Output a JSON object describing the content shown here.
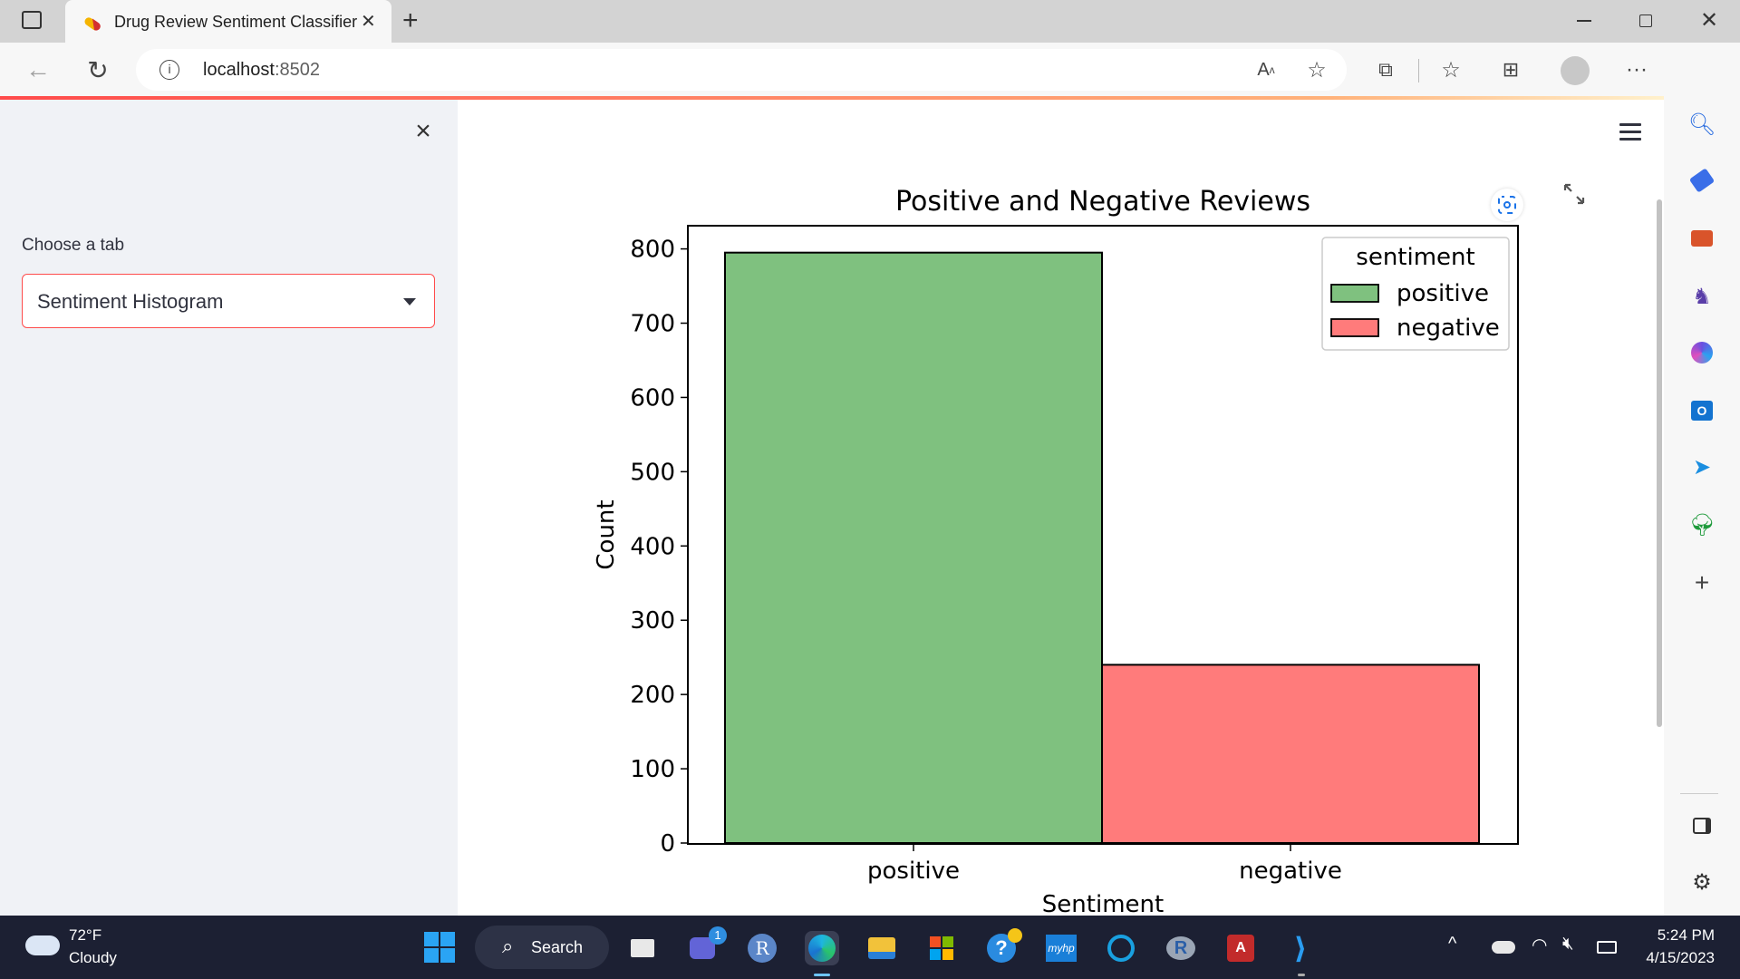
{
  "browser": {
    "tab_title": "Drug Review Sentiment Classifier",
    "url_host": "localhost",
    "url_port": ":8502"
  },
  "sidebar": {
    "select_label": "Choose a tab",
    "selected_tab": "Sentiment Histogram"
  },
  "chart_data": {
    "type": "bar",
    "title": "Positive and Negative Reviews",
    "xlabel": "Sentiment",
    "ylabel": "Count",
    "categories": [
      "positive",
      "negative"
    ],
    "values": [
      795,
      240
    ],
    "ylim": [
      0,
      830
    ],
    "yticks": [
      0,
      100,
      200,
      300,
      400,
      500,
      600,
      700,
      800
    ],
    "colors": [
      "#7fc17f",
      "#ff7b7b"
    ],
    "legend": {
      "title": "sentiment",
      "placement": "top-right",
      "entries": [
        "positive",
        "negative"
      ]
    },
    "grid": false
  },
  "taskbar": {
    "temperature": "72°F",
    "condition": "Cloudy",
    "search_label": "Search",
    "time": "5:24 PM",
    "date": "4/15/2023",
    "teams_badge": "1"
  },
  "icons": {
    "back": "arrow-left-icon",
    "refresh": "refresh-icon",
    "info": "info-icon"
  }
}
